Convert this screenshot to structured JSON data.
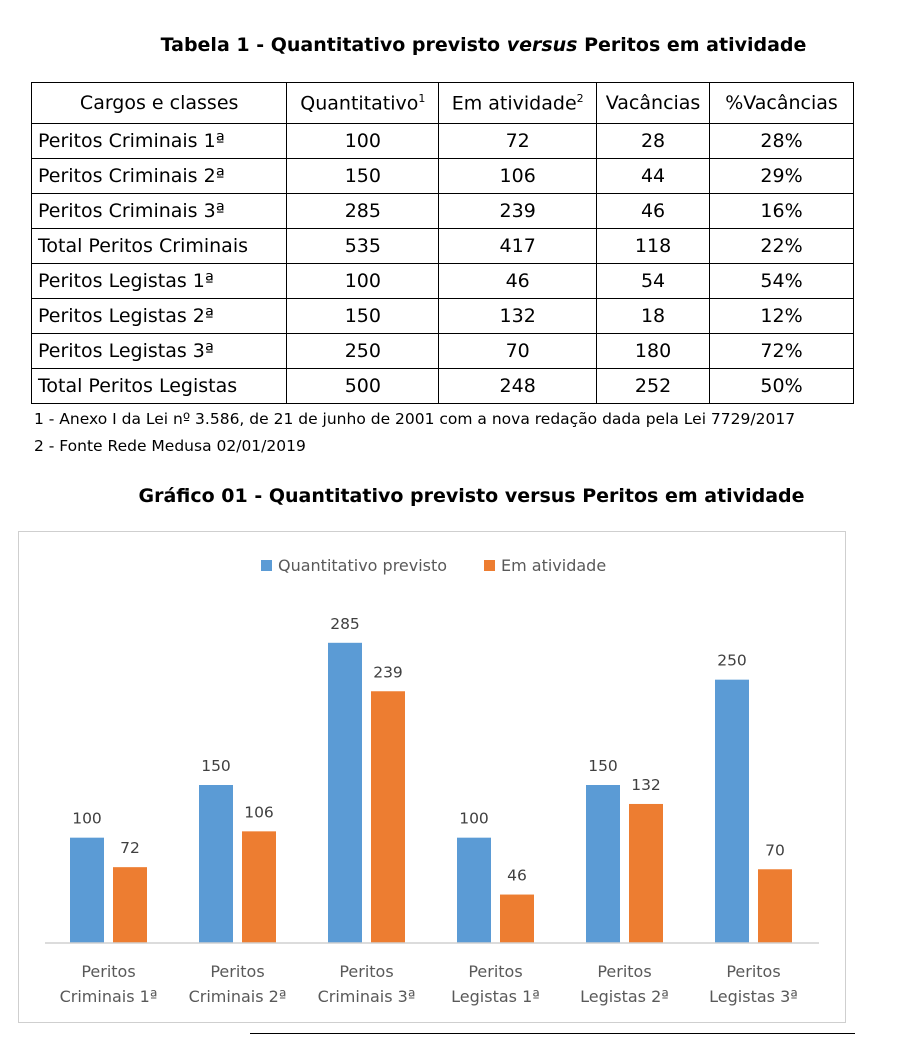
{
  "table": {
    "title_prefix": "Tabela 1 - Quantitativo previsto ",
    "title_italic": "versus",
    "title_suffix": " Peritos em atividade",
    "headers": {
      "cargos": "Cargos e classes",
      "quantitativo": "Quantitativo",
      "quantitativo_sup": "1",
      "em_atividade": "Em atividade",
      "em_atividade_sup": "2",
      "vacancias": "Vacâncias",
      "pct_vacancias": "%Vacâncias"
    },
    "rows": [
      {
        "cargo": "Peritos Criminais 1ª",
        "quantitativo": "100",
        "em_atividade": "72",
        "vacancias": "28",
        "pct": "28%"
      },
      {
        "cargo": "Peritos Criminais 2ª",
        "quantitativo": "150",
        "em_atividade": "106",
        "vacancias": "44",
        "pct": "29%"
      },
      {
        "cargo": "Peritos Criminais 3ª",
        "quantitativo": "285",
        "em_atividade": "239",
        "vacancias": "46",
        "pct": "16%"
      },
      {
        "cargo": "Total Peritos Criminais",
        "quantitativo": "535",
        "em_atividade": "417",
        "vacancias": "118",
        "pct": "22%"
      },
      {
        "cargo": "Peritos Legistas 1ª",
        "quantitativo": "100",
        "em_atividade": "46",
        "vacancias": "54",
        "pct": "54%"
      },
      {
        "cargo": "Peritos Legistas 2ª",
        "quantitativo": "150",
        "em_atividade": "132",
        "vacancias": "18",
        "pct": "12%"
      },
      {
        "cargo": "Peritos Legistas 3ª",
        "quantitativo": "250",
        "em_atividade": "70",
        "vacancias": "180",
        "pct": "72%"
      },
      {
        "cargo": "Total Peritos Legistas",
        "quantitativo": "500",
        "em_atividade": "248",
        "vacancias": "252",
        "pct": "50%"
      }
    ],
    "footnotes": [
      "1 - Anexo I da Lei nº 3.586, de 21 de junho de 2001 com a nova redação dada pela Lei 7729/2017",
      "2 - Fonte Rede Medusa 02/01/2019"
    ]
  },
  "chart_title": "Gráfico 01 - Quantitativo previsto versus Peritos em atividade",
  "chart_data": {
    "type": "bar",
    "categories": [
      [
        "Peritos",
        "Criminais 1ª"
      ],
      [
        "Peritos",
        "Criminais 2ª"
      ],
      [
        "Peritos",
        "Criminais 3ª"
      ],
      [
        "Peritos",
        "Legistas 1ª"
      ],
      [
        "Peritos",
        "Legistas 2ª"
      ],
      [
        "Peritos",
        "Legistas 3ª"
      ]
    ],
    "series": [
      {
        "name": "Quantitativo previsto",
        "color": "#5b9bd5",
        "values": [
          100,
          150,
          285,
          100,
          150,
          250
        ]
      },
      {
        "name": "Em atividade",
        "color": "#ed7d31",
        "values": [
          72,
          106,
          239,
          46,
          132,
          70
        ]
      }
    ],
    "ylim": [
      0,
      300
    ],
    "data_labels": true,
    "legend": "top-center",
    "grid": false,
    "title": "",
    "xlabel": "",
    "ylabel": ""
  }
}
